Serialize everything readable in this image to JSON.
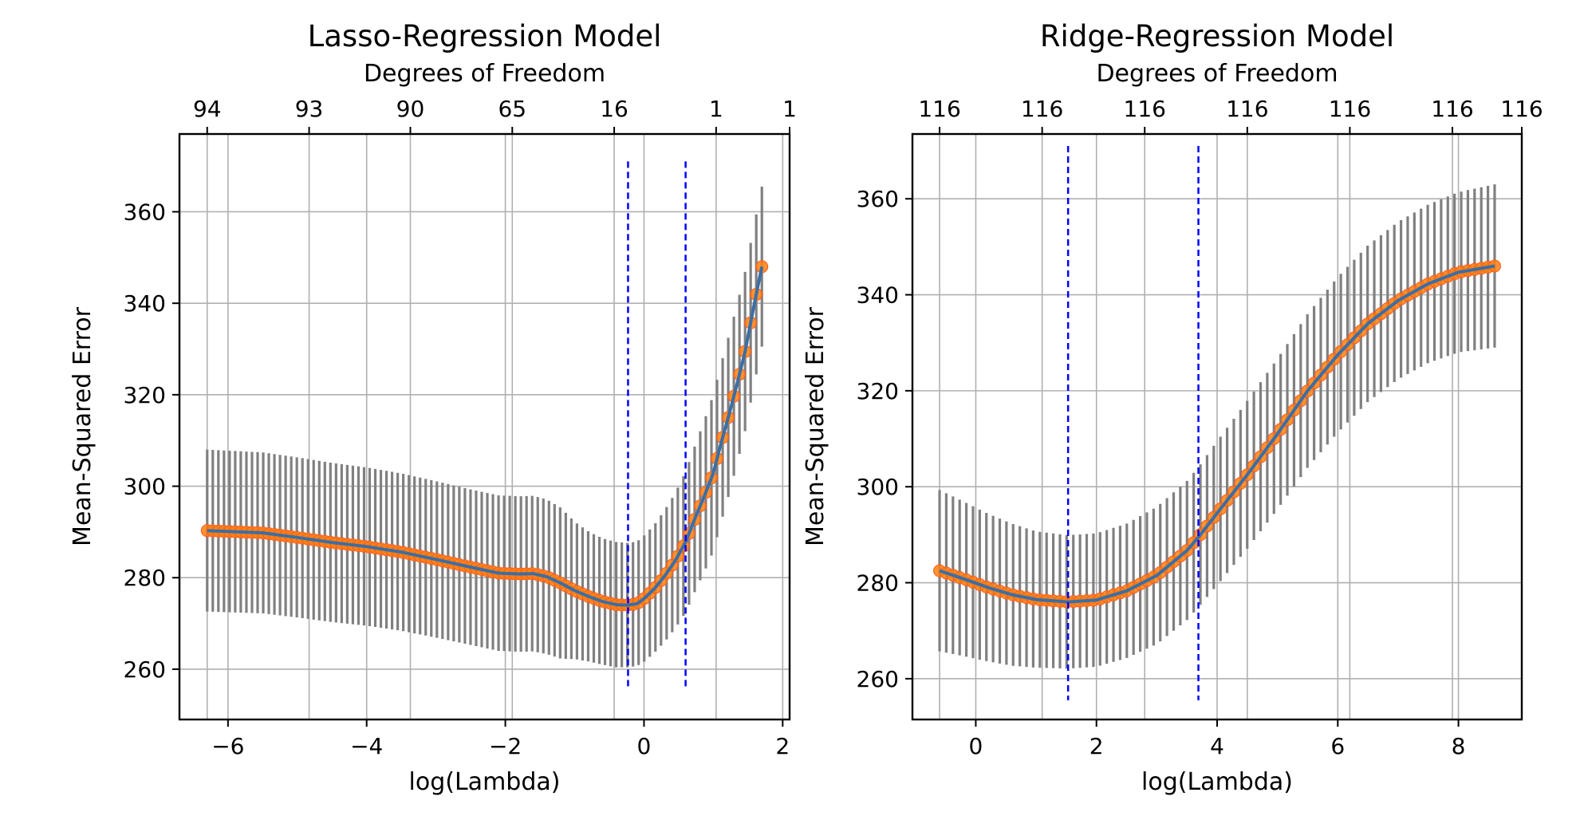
{
  "chart_data": [
    {
      "type": "line",
      "title": "Lasso-Regression Model",
      "xlabel": "log(Lambda)",
      "ylabel": "Mean-Squared Error",
      "top_xlabel": "Degrees of Freedom",
      "xlim": [
        -6.7,
        2.1
      ],
      "ylim": [
        249,
        377
      ],
      "xticks": [
        -6,
        -4,
        -2,
        0,
        2
      ],
      "xtick_labels": [
        "−6",
        "−4",
        "−2",
        "0",
        "2"
      ],
      "yticks": [
        260,
        280,
        300,
        320,
        340,
        360
      ],
      "top_ticks": [
        -6.3,
        -4.83,
        -3.37,
        -1.9,
        -0.43,
        1.04,
        2.1
      ],
      "top_tick_labels": [
        "94",
        "93",
        "90",
        "65",
        "16",
        "1",
        "1"
      ],
      "grid": true,
      "vlines": [
        -0.23,
        0.6
      ],
      "x": [
        -6.3,
        -5.5,
        -5.0,
        -4.5,
        -4.0,
        -3.5,
        -3.0,
        -2.5,
        -2.1,
        -1.8,
        -1.6,
        -1.4,
        -1.2,
        -1.0,
        -0.8,
        -0.6,
        -0.4,
        -0.23,
        -0.1,
        0.0,
        0.15,
        0.3,
        0.45,
        0.6,
        0.75,
        0.88,
        1.0,
        1.1,
        1.22,
        1.34,
        1.46,
        1.58,
        1.7
      ],
      "y": [
        290.3,
        289.8,
        288.8,
        287.7,
        286.8,
        285.6,
        284.0,
        282.3,
        281.0,
        280.8,
        280.9,
        280.2,
        278.8,
        277.2,
        275.9,
        274.8,
        274.1,
        274.0,
        274.3,
        275.4,
        277.6,
        280.4,
        283.7,
        287.8,
        293.5,
        298.2,
        302.9,
        308.8,
        315.3,
        322.2,
        329.6,
        339.0,
        348.0
      ],
      "err": [
        17.7,
        17.6,
        17.5,
        17.4,
        17.3,
        17.2,
        17.1,
        17.0,
        17.0,
        17.0,
        17.0,
        16.9,
        16.5,
        15.0,
        14.2,
        13.8,
        13.7,
        13.6,
        13.6,
        13.8,
        14.0,
        14.4,
        14.8,
        15.4,
        16.0,
        16.6,
        17.1,
        17.3,
        17.4,
        17.4,
        17.4,
        17.5,
        17.5
      ]
    },
    {
      "type": "line",
      "title": "Ridge-Regression Model",
      "xlabel": "log(Lambda)",
      "ylabel": "Mean-Squared Error",
      "top_xlabel": "Degrees of Freedom",
      "xlim": [
        -1.05,
        9.05
      ],
      "ylim": [
        251.5,
        373.5
      ],
      "xticks": [
        0,
        2,
        4,
        6,
        8
      ],
      "xtick_labels": [
        "0",
        "2",
        "4",
        "6",
        "8"
      ],
      "yticks": [
        260,
        280,
        300,
        320,
        340,
        360
      ],
      "top_ticks": [
        -0.6,
        1.1,
        2.8,
        4.5,
        6.2,
        7.9,
        9.05
      ],
      "top_tick_labels": [
        "116",
        "116",
        "116",
        "116",
        "116",
        "116",
        "116"
      ],
      "grid": true,
      "vlines": [
        1.53,
        3.69
      ],
      "x": [
        -0.6,
        -0.2,
        0.2,
        0.6,
        1.0,
        1.53,
        2.0,
        2.5,
        3.0,
        3.5,
        3.69,
        4.0,
        4.5,
        5.0,
        5.5,
        6.0,
        6.5,
        7.0,
        7.5,
        8.0,
        8.6
      ],
      "y": [
        282.5,
        280.8,
        279.0,
        277.5,
        276.5,
        276.0,
        276.4,
        278.3,
        281.5,
        286.7,
        289.5,
        294.5,
        302.5,
        311.0,
        320.0,
        327.5,
        334.0,
        338.8,
        342.3,
        344.7,
        346.0
      ],
      "err": [
        16.8,
        16.1,
        15.4,
        14.8,
        14.2,
        13.9,
        13.9,
        14.0,
        14.3,
        14.5,
        14.6,
        15.0,
        15.4,
        15.7,
        16.0,
        16.2,
        16.3,
        16.4,
        16.5,
        16.7,
        17.0
      ]
    }
  ]
}
